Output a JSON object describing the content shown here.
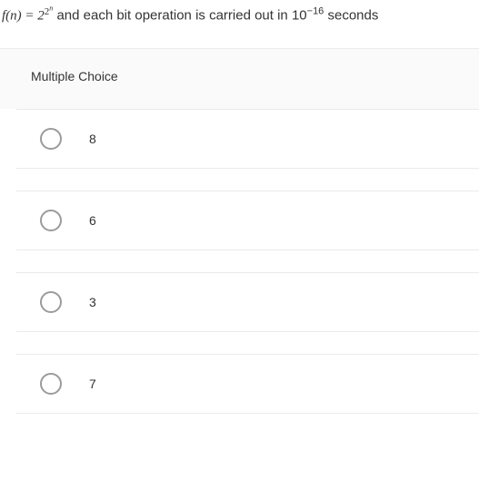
{
  "question": {
    "prefix": "f(n) = 2",
    "exp_outer": "2",
    "exp_inner": "n",
    "middle": " and each bit operation is carried out in 10",
    "neg_exp": "−16",
    "suffix": " seconds"
  },
  "section_label": "Multiple Choice",
  "choices": [
    {
      "label": "8"
    },
    {
      "label": "6"
    },
    {
      "label": "3"
    },
    {
      "label": "7"
    }
  ],
  "colors": {
    "background": "#ffffff",
    "panel": "#fafafa",
    "border": "#eceaea",
    "radio_border": "#9b9b9b",
    "text": "#333333"
  },
  "typography": {
    "question_fontsize": 15,
    "label_fontsize": 14,
    "choice_fontsize": 14
  }
}
